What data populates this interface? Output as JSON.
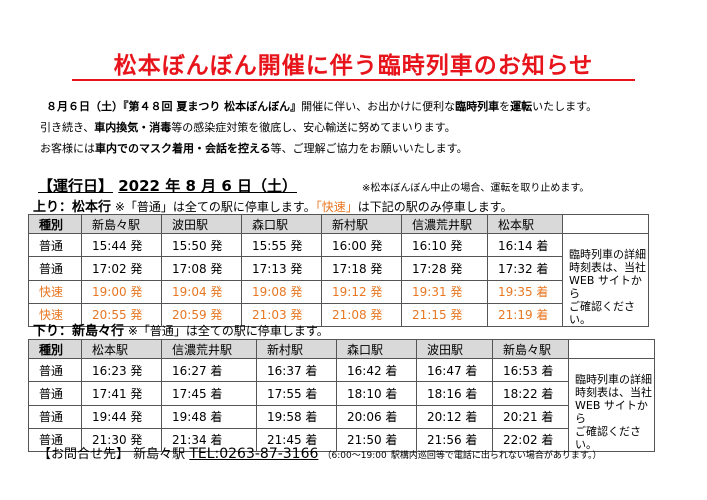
{
  "title": "松本ぼんぼん開催に伴う臨時列車のお知らせ",
  "intro": {
    "line1_a": "８月６日（土）『第４８回 夏まつり 松本ぼんぼん』",
    "line1_b": "開催に伴い、お出かけに便利な",
    "line1_c": "臨時列車",
    "line1_d": "を",
    "line1_e": "運転",
    "line1_f": "いたします。",
    "line2_a": "引き続き、",
    "line2_b": "車内換気・消毒",
    "line2_c": "等の感染症対策を徹底し、安心輸送に努めてまいります。",
    "line3_a": "お客様には",
    "line3_b": "車内でのマスク着用・会話を控える",
    "line3_c": "等、ご理解ご協力をお願いいたします。"
  },
  "operation_day": {
    "label": "【運行日】",
    "date": "2022 年 8 月 6 日（土）",
    "note": "※松本ぼんぼん中止の場合、運転を取り止めます。"
  },
  "up": {
    "heading": "上り：松本行",
    "note_a": "※「普通」は全ての駅に停車します。",
    "note_b": "「快速」",
    "note_c": "は下記の駅のみ停車します。",
    "headers": [
      "種別",
      "新島々駅",
      "波田駅",
      "森口駅",
      "新村駅",
      "信濃荒井駅",
      "松本駅"
    ],
    "rows": [
      {
        "type": "普通",
        "rapid": false,
        "times": [
          "15:44 発",
          "15:50 発",
          "15:55 発",
          "16:00 発",
          "16:10 発",
          "16:14 着"
        ]
      },
      {
        "type": "普通",
        "rapid": false,
        "times": [
          "17:02 発",
          "17:08 発",
          "17:13 発",
          "17:18 発",
          "17:28 発",
          "17:32 着"
        ]
      },
      {
        "type": "快速",
        "rapid": true,
        "times": [
          "19:00 発",
          "19:04 発",
          "19:08 発",
          "19:12 発",
          "19:31 発",
          "19:35 着"
        ]
      },
      {
        "type": "快速",
        "rapid": true,
        "times": [
          "20:55 発",
          "20:59 発",
          "21:03 発",
          "21:08 発",
          "21:15 発",
          "21:19 着"
        ]
      }
    ],
    "side_note": [
      "臨時列車の詳細",
      "時刻表は、当社",
      "WEB サイトから",
      "ご確認ください。"
    ]
  },
  "down": {
    "heading": "下り：新島々行",
    "note_a": "※「普通」は全ての駅に停車します。",
    "headers": [
      "種別",
      "松本駅",
      "信濃荒井駅",
      "新村駅",
      "森口駅",
      "波田駅",
      "新島々駅"
    ],
    "rows": [
      {
        "type": "普通",
        "rapid": false,
        "times": [
          "16:23 発",
          "16:27 着",
          "16:37 着",
          "16:42 着",
          "16:47 着",
          "16:53 着"
        ]
      },
      {
        "type": "普通",
        "rapid": false,
        "times": [
          "17:41 発",
          "17:45 着",
          "17:55 着",
          "18:10 着",
          "18:16 着",
          "18:22 着"
        ]
      },
      {
        "type": "普通",
        "rapid": false,
        "times": [
          "19:44 発",
          "19:48 着",
          "19:58 着",
          "20:06 着",
          "20:12 着",
          "20:21 着"
        ]
      },
      {
        "type": "普通",
        "rapid": false,
        "times": [
          "21:30 発",
          "21:34 着",
          "21:45 着",
          "21:50 着",
          "21:56 着",
          "22:02 着"
        ]
      }
    ],
    "side_note": [
      "臨時列車の詳細",
      "時刻表は、当社",
      "WEB サイトから",
      "ご確認ください。"
    ]
  },
  "contact": {
    "label": "【お問合せ先】",
    "station": "新島々駅",
    "tel": "TEL:0263-87-3166",
    "hours": "（6:00～19:00",
    "hours_note": "駅構内巡回等で電話に出られない場合があります。）"
  },
  "colors": {
    "title_red": "#e8141b",
    "rapid_orange": "#e87722",
    "header_gray": "#d9d9d9"
  }
}
